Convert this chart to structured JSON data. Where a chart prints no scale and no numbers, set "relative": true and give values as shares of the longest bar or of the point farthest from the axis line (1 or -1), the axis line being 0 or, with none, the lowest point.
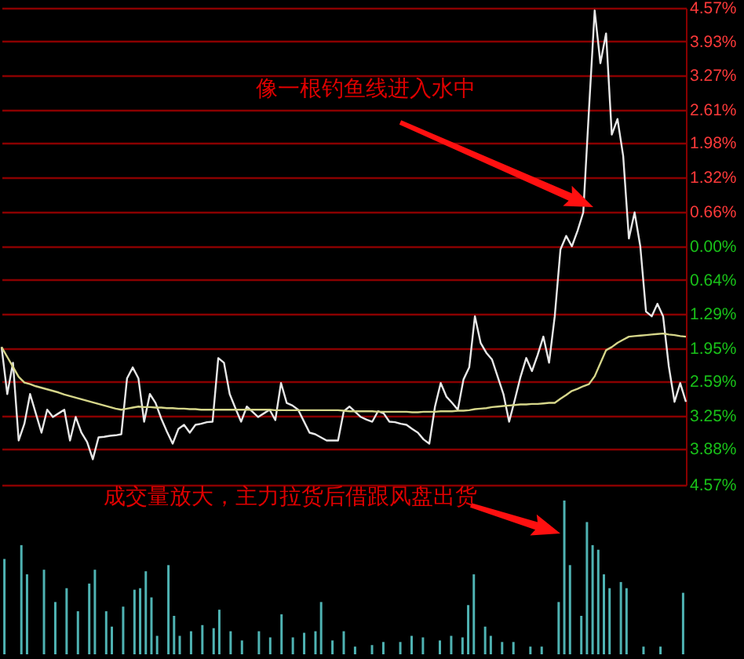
{
  "chart_data": [
    {
      "type": "line",
      "ylim": [
        -4.57,
        4.57
      ],
      "tick_labels": "y",
      "grid": "y",
      "categories": [
        null,
        null,
        null,
        null,
        null,
        null,
        null,
        null,
        null,
        null,
        null,
        null,
        null,
        null,
        null,
        null,
        null,
        null,
        null,
        null,
        null,
        null,
        null,
        null,
        null,
        null,
        null,
        null,
        null,
        null,
        null,
        null,
        null,
        null,
        null,
        null,
        null,
        null,
        null,
        null,
        null,
        null,
        null,
        null,
        null,
        null,
        null,
        null,
        null,
        null,
        null,
        null,
        null,
        null,
        null,
        null,
        null,
        null,
        null,
        null,
        null,
        null,
        null,
        null,
        null,
        null,
        null,
        null,
        null,
        null,
        null,
        null,
        null,
        null,
        null,
        null,
        null,
        null,
        null,
        null,
        null,
        null,
        null,
        null,
        null,
        null,
        null,
        null,
        null,
        null,
        null,
        null,
        null,
        null,
        null,
        null,
        null,
        null,
        null,
        null,
        null,
        null,
        null,
        null,
        null,
        null,
        null,
        null,
        null,
        null,
        null,
        null,
        null,
        null,
        null,
        null,
        null,
        null,
        null,
        null,
        null
      ],
      "yticks": [
        {
          "value": 4.57,
          "label": "4.57%"
        },
        {
          "value": 3.93,
          "label": "3.93%"
        },
        {
          "value": 3.27,
          "label": "3.27%"
        },
        {
          "value": 2.61,
          "label": "2.61%"
        },
        {
          "value": 1.98,
          "label": "1.98%"
        },
        {
          "value": 1.32,
          "label": "1.32%"
        },
        {
          "value": 0.66,
          "label": "0.66%"
        },
        {
          "value": 0,
          "label": "0.00%"
        },
        {
          "value": -0.64,
          "label": "0.64%"
        },
        {
          "value": -1.29,
          "label": "1.29%"
        },
        {
          "value": -1.95,
          "label": "1.95%"
        },
        {
          "value": -2.59,
          "label": "2.59%"
        },
        {
          "value": -3.25,
          "label": "3.25%"
        },
        {
          "value": -3.88,
          "label": "3.88%"
        },
        {
          "value": -4.57,
          "label": "4.57%"
        }
      ],
      "annotations": [
        "像一根钓鱼线进入水中"
      ],
      "series": [
        {
          "color": "#e8e8e8",
          "values": [
            -1.93,
            -2.83,
            -2.23,
            -3.72,
            -3.4,
            -2.83,
            -3.2,
            -3.57,
            -3.13,
            -3.27,
            -3.2,
            -3.13,
            -3.72,
            -3.27,
            -3.57,
            -3.75,
            -4.08,
            -3.66,
            -3.65,
            -3.63,
            -3.62,
            -3.6,
            -2.53,
            -2.32,
            -2.53,
            -3.36,
            -2.83,
            -3.0,
            -3.3,
            -3.55,
            -3.78,
            -3.5,
            -3.42,
            -3.57,
            -3.42,
            -3.4,
            -3.37,
            -3.36,
            -2.14,
            -2.23,
            -2.83,
            -3.1,
            -3.36,
            -3.07,
            -3.17,
            -3.27,
            -3.2,
            -3.13,
            -3.33,
            -2.62,
            -3.0,
            -3.05,
            -3.13,
            -3.35,
            -3.57,
            -3.6,
            -3.66,
            -3.72,
            -3.72,
            -3.72,
            -3.16,
            -3.07,
            -3.17,
            -3.27,
            -3.32,
            -3.36,
            -3.16,
            -3.2,
            -3.36,
            -3.37,
            -3.4,
            -3.42,
            -3.5,
            -3.57,
            -3.7,
            -3.78,
            -3.07,
            -2.62,
            -2.88,
            -3.0,
            -3.13,
            -2.55,
            -2.32,
            -1.34,
            -1.85,
            -2.04,
            -2.17,
            -2.5,
            -2.83,
            -3.36,
            -2.94,
            -2.5,
            -2.14,
            -2.39,
            -2.08,
            -1.73,
            -2.23,
            -1.34,
            -0.06,
            0.2,
            0,
            0.3,
            0.65,
            2.62,
            4.52,
            3.51,
            4.08,
            2.14,
            2.44,
            1.73,
            0.15,
            0.65,
            0,
            -1.25,
            -1.34,
            -1.1,
            -1.34,
            -2.3,
            -2.98,
            -2.62,
            -2.98
          ]
        },
        {
          "color": "#d6d68a",
          "values": [
            -1.93,
            -2.12,
            -2.31,
            -2.5,
            -2.61,
            -2.64,
            -2.68,
            -2.71,
            -2.74,
            -2.77,
            -2.8,
            -2.84,
            -2.87,
            -2.9,
            -2.93,
            -2.96,
            -2.99,
            -3.02,
            -3.05,
            -3.08,
            -3.11,
            -3.13,
            -3.11,
            -3.09,
            -3.07,
            -3.08,
            -3.08,
            -3.09,
            -3.09,
            -3.1,
            -3.1,
            -3.11,
            -3.11,
            -3.12,
            -3.12,
            -3.13,
            -3.13,
            -3.13,
            -3.13,
            -3.13,
            -3.13,
            -3.13,
            -3.13,
            -3.13,
            -3.13,
            -3.13,
            -3.13,
            -3.13,
            -3.14,
            -3.14,
            -3.14,
            -3.14,
            -3.14,
            -3.14,
            -3.14,
            -3.14,
            -3.14,
            -3.14,
            -3.14,
            -3.14,
            -3.15,
            -3.16,
            -3.16,
            -3.16,
            -3.16,
            -3.16,
            -3.17,
            -3.17,
            -3.17,
            -3.17,
            -3.17,
            -3.17,
            -3.18,
            -3.18,
            -3.17,
            -3.17,
            -3.17,
            -3.16,
            -3.16,
            -3.16,
            -3.15,
            -3.15,
            -3.14,
            -3.12,
            -3.11,
            -3.1,
            -3.08,
            -3.07,
            -3.06,
            -3.05,
            -3.04,
            -3.03,
            -3.03,
            -3.02,
            -3.02,
            -3.01,
            -3.0,
            -3.0,
            -2.92,
            -2.85,
            -2.77,
            -2.73,
            -2.68,
            -2.64,
            -2.49,
            -2.24,
            -1.99,
            -1.93,
            -1.85,
            -1.79,
            -1.73,
            -1.72,
            -1.71,
            -1.7,
            -1.69,
            -1.68,
            -1.67,
            -1.69,
            -1.7,
            -1.72,
            -1.73
          ]
        }
      ]
    },
    {
      "type": "bar",
      "relative": true,
      "tick_labels": false,
      "categories": [
        null,
        null,
        null,
        null,
        null,
        null,
        null,
        null,
        null,
        null,
        null,
        null,
        null,
        null,
        null,
        null,
        null,
        null,
        null,
        null,
        null,
        null,
        null,
        null,
        null,
        null,
        null,
        null,
        null,
        null,
        null,
        null,
        null,
        null,
        null,
        null,
        null,
        null,
        null,
        null,
        null,
        null,
        null,
        null,
        null,
        null,
        null,
        null,
        null,
        null,
        null,
        null,
        null,
        null,
        null,
        null,
        null,
        null,
        null,
        null,
        null,
        null,
        null,
        null,
        null,
        null,
        null,
        null,
        null,
        null,
        null,
        null,
        null,
        null,
        null,
        null,
        null,
        null,
        null,
        null,
        null,
        null,
        null,
        null,
        null,
        null,
        null,
        null,
        null,
        null,
        null,
        null,
        null,
        null,
        null,
        null,
        null,
        null,
        null,
        null,
        null,
        null,
        null,
        null,
        null,
        null,
        null,
        null,
        null,
        null,
        null,
        null,
        null,
        null,
        null,
        null,
        null,
        null,
        null,
        null,
        null
      ],
      "annotations": [
        "成交量放大，主力拉货后借跟风盘出货"
      ],
      "series": [
        {
          "color": "#4fb3b3",
          "values": [
            0.62,
            null,
            null,
            0.71,
            0.52,
            null,
            null,
            0.55,
            null,
            0.34,
            null,
            0.43,
            null,
            0.28,
            null,
            0.46,
            0.55,
            null,
            0.28,
            0.18,
            null,
            0.31,
            null,
            0.42,
            0.43,
            0.54,
            0.37,
            0.12,
            null,
            0.58,
            0.25,
            0.12,
            null,
            0.15,
            null,
            0.19,
            null,
            0.17,
            0.29,
            null,
            0.15,
            null,
            0.09,
            null,
            null,
            0.15,
            null,
            0.11,
            null,
            0.26,
            null,
            0.11,
            null,
            0.14,
            null,
            0.15,
            0.34,
            null,
            0.09,
            null,
            0.15,
            null,
            0.05,
            null,
            null,
            0.06,
            null,
            0.08,
            null,
            null,
            0.08,
            null,
            0.12,
            null,
            0.11,
            null,
            null,
            0.09,
            null,
            0.12,
            null,
            0.11,
            0.32,
            0.52,
            null,
            0.18,
            0.12,
            null,
            0.08,
            null,
            0.08,
            null,
            null,
            0.05,
            null,
            0.05,
            null,
            null,
            0.34,
            1,
            0.58,
            null,
            0.25,
            0.86,
            0.71,
            0.68,
            0.52,
            0.43,
            null,
            0.47,
            0.43,
            null,
            null,
            0.05,
            null,
            null,
            0.05,
            null,
            null,
            null,
            0.4
          ]
        }
      ]
    }
  ]
}
